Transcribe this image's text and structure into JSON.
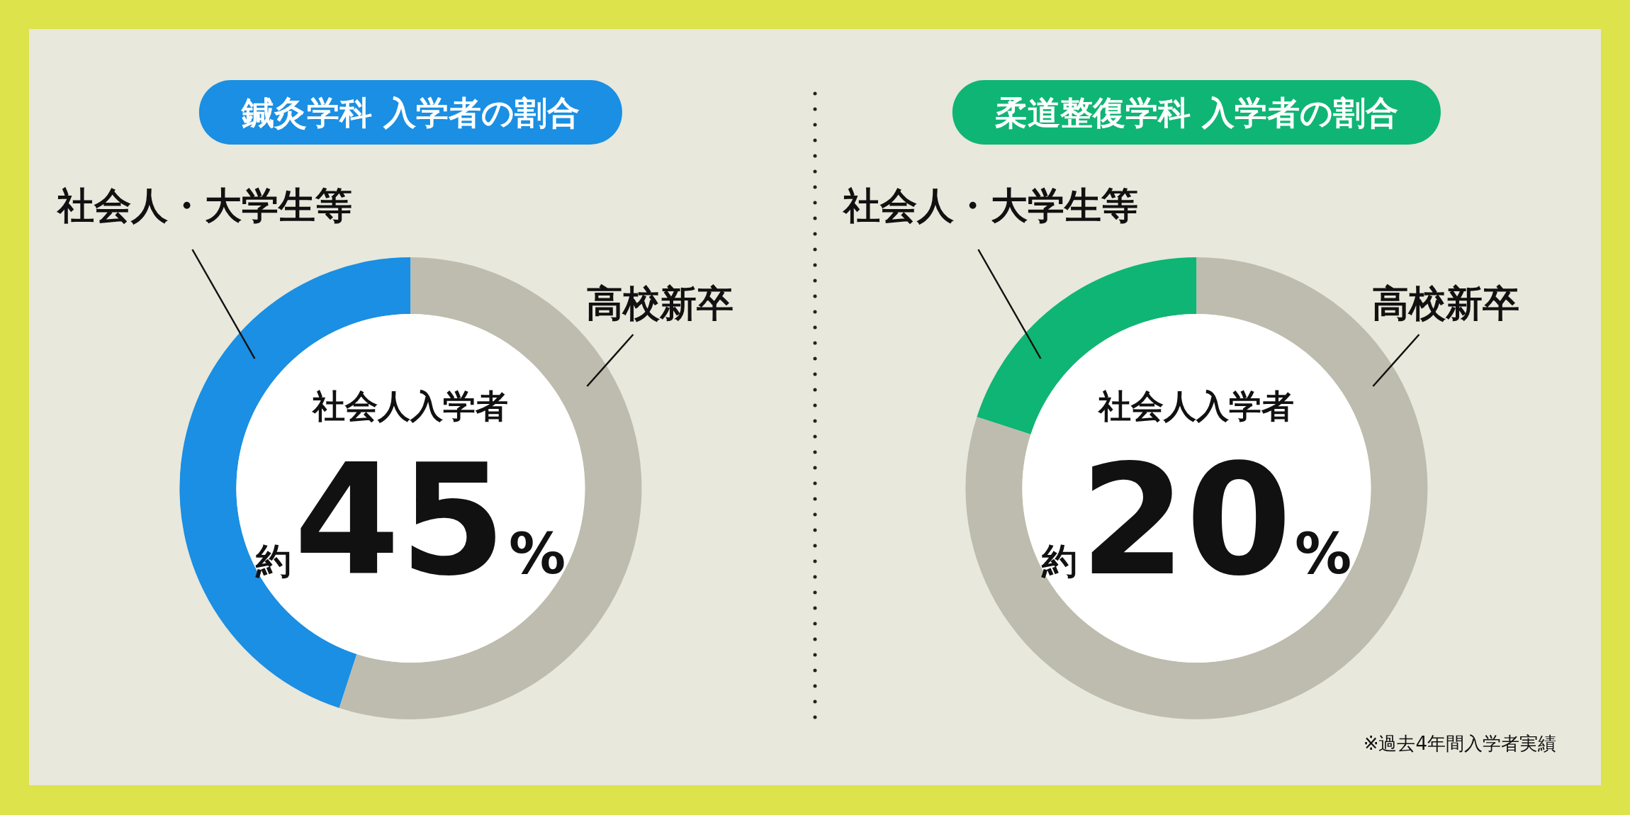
{
  "chart_data": [
    {
      "type": "donut",
      "title": "鍼灸学科 入学者の割合",
      "categories": [
        "社会人・大学生等",
        "高校新卒"
      ],
      "values": [
        45,
        55
      ],
      "colors": [
        "#1a8fe3",
        "#bdbcae"
      ],
      "annotations": [
        "社会人入学者",
        "約45%"
      ]
    },
    {
      "type": "donut",
      "title": "柔道整復学科 入学者の割合",
      "categories": [
        "社会人・大学生等",
        "高校新卒"
      ],
      "values": [
        20,
        80
      ],
      "colors": [
        "#0fb574",
        "#bdbcae"
      ],
      "annotations": [
        "社会人入学者",
        "約20%",
        "※過去4年間入学者実績"
      ]
    }
  ]
}
